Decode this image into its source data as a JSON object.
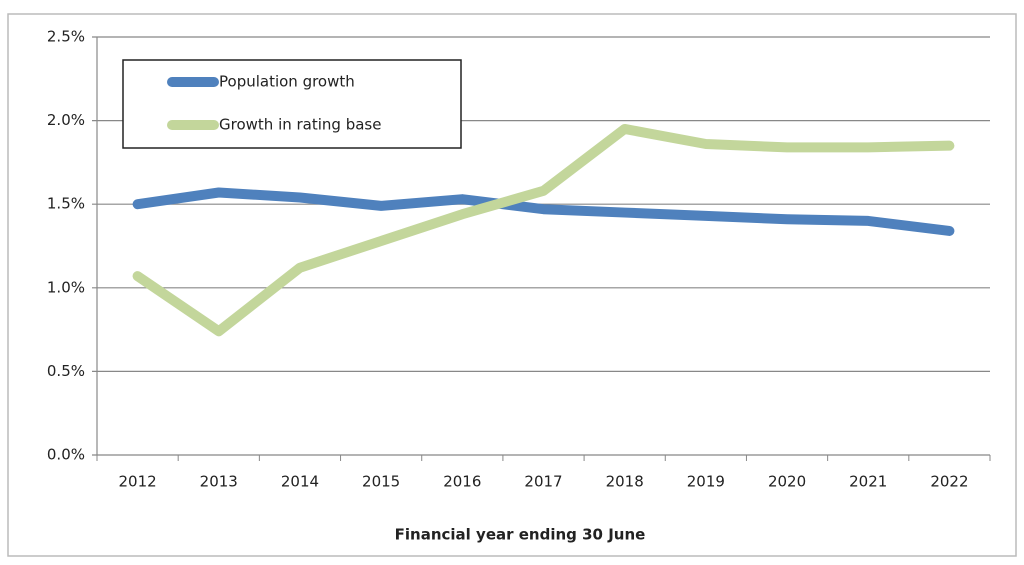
{
  "chart_data": {
    "type": "line",
    "xlabel": "Financial year ending 30 June",
    "categories": [
      "2012",
      "2013",
      "2014",
      "2015",
      "2016",
      "2017",
      "2018",
      "2019",
      "2020",
      "2021",
      "2022"
    ],
    "series": [
      {
        "name": "Population growth",
        "color": "#4f81bd",
        "values": [
          1.5,
          1.57,
          1.54,
          1.49,
          1.53,
          1.47,
          1.45,
          1.43,
          1.41,
          1.4,
          1.34
        ]
      },
      {
        "name": "Growth in rating base",
        "color": "#c3d69b",
        "values": [
          1.07,
          0.74,
          1.12,
          1.28,
          1.44,
          1.58,
          1.95,
          1.86,
          1.84,
          1.84,
          1.85
        ]
      }
    ],
    "ylim": [
      0,
      2.5
    ],
    "yticks": [
      {
        "value": 0,
        "label": "0.0%"
      },
      {
        "value": 0.5,
        "label": "0.5%"
      },
      {
        "value": 1,
        "label": "1.0%"
      },
      {
        "value": 1.5,
        "label": "1.5%"
      },
      {
        "value": 2,
        "label": "2.0%"
      },
      {
        "value": 2.5,
        "label": "2.5%"
      }
    ],
    "grid": true,
    "legend": "top-left"
  }
}
